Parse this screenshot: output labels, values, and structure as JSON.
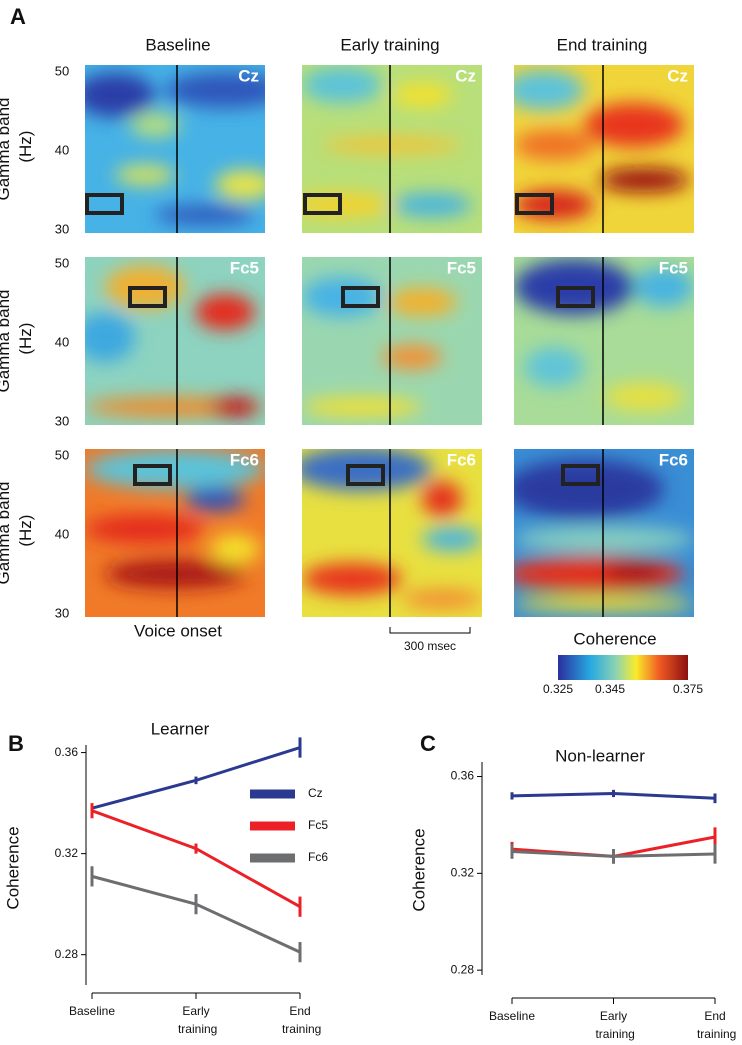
{
  "chart_data": [
    {
      "type": "heatmap",
      "panel_label": "A",
      "columns": [
        "Baseline",
        "Early training",
        "End training"
      ],
      "rows": [
        "Cz",
        "Fc5",
        "Fc6"
      ],
      "ylabel": "Gamma band (Hz)",
      "ylim": [
        30,
        50
      ],
      "yticks": [
        30,
        40,
        50
      ],
      "annotation": "Voice onset",
      "scale_label": "300 msec",
      "colorbar_label": "Coherence",
      "colorbar_lim": [
        0.325,
        0.375
      ],
      "colorbar_ticks": [
        0.325,
        0.345,
        0.375
      ]
    },
    {
      "type": "line",
      "panel_label": "B",
      "title": "Learner",
      "ylabel": "Coherence",
      "categories": [
        "Baseline",
        "Early training",
        "End training"
      ],
      "ylim": [
        0.268,
        0.363
      ],
      "yticks": [
        0.28,
        0.32,
        0.36
      ],
      "legend": true,
      "series": [
        {
          "name": "Cz",
          "color": "#2b3990",
          "values": [
            0.338,
            0.349,
            0.362
          ],
          "errors": [
            0.0015,
            0.0015,
            0.004
          ]
        },
        {
          "name": "Fc5",
          "color": "#ec2027",
          "values": [
            0.337,
            0.322,
            0.299
          ],
          "errors": [
            0.003,
            0.002,
            0.004
          ]
        },
        {
          "name": "Fc6",
          "color": "#6d6e70",
          "values": [
            0.311,
            0.3,
            0.281
          ],
          "errors": [
            0.004,
            0.004,
            0.004
          ]
        }
      ]
    },
    {
      "type": "line",
      "panel_label": "C",
      "title": "Non-learner",
      "ylabel": "Coherence",
      "categories": [
        "Baseline",
        "Early training",
        "End training"
      ],
      "ylim": [
        0.278,
        0.366
      ],
      "yticks": [
        0.28,
        0.32,
        0.36
      ],
      "legend": false,
      "series": [
        {
          "name": "Cz",
          "color": "#2b3990",
          "values": [
            0.352,
            0.353,
            0.351
          ],
          "errors": [
            0.0015,
            0.0015,
            0.002
          ]
        },
        {
          "name": "Fc5",
          "color": "#ec2027",
          "values": [
            0.33,
            0.327,
            0.335
          ],
          "errors": [
            0.003,
            0.003,
            0.004
          ]
        },
        {
          "name": "Fc6",
          "color": "#6d6e70",
          "values": [
            0.329,
            0.327,
            0.328
          ],
          "errors": [
            0.003,
            0.003,
            0.004
          ]
        }
      ]
    }
  ]
}
